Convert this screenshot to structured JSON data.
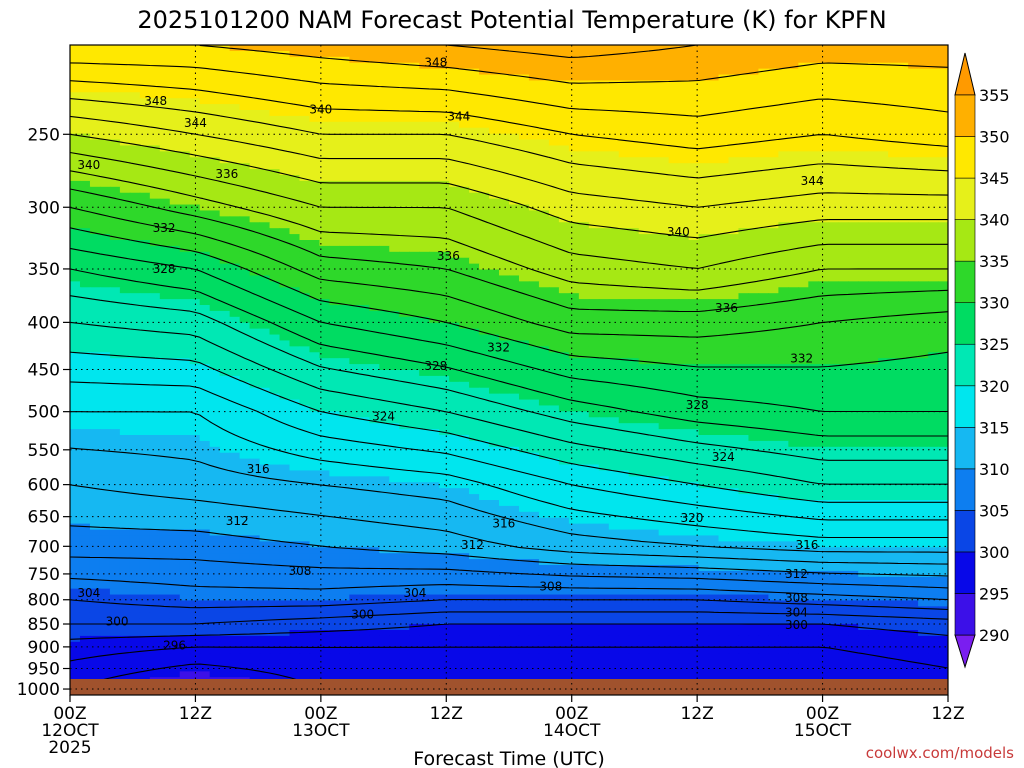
{
  "chart_data": {
    "type": "heatmap",
    "title": "2025101200 NAM Forecast Potential Temperature (K) for KPFN",
    "xlabel": "Forecast Time (UTC)",
    "ylabel": "",
    "credit": "coolwx.com/models",
    "y_axis": {
      "unit": "hPa",
      "range": [
        1015,
        200
      ],
      "scale": "log-pressure",
      "ticks": [
        "250",
        "300",
        "350",
        "400",
        "450",
        "500",
        "550",
        "600",
        "650",
        "700",
        "750",
        "800",
        "850",
        "900",
        "950",
        "1000"
      ],
      "tick_values": [
        250,
        300,
        350,
        400,
        450,
        500,
        550,
        600,
        650,
        700,
        750,
        800,
        850,
        900,
        950,
        1000
      ]
    },
    "x_axis": {
      "unit": "hours",
      "range": [
        0,
        84
      ],
      "ticks": [
        {
          "h": 0,
          "l1": "00Z",
          "l2": "12OCT",
          "l3": "2025"
        },
        {
          "h": 12,
          "l1": "12Z",
          "l2": "",
          "l3": ""
        },
        {
          "h": 24,
          "l1": "00Z",
          "l2": "13OCT",
          "l3": ""
        },
        {
          "h": 36,
          "l1": "12Z",
          "l2": "",
          "l3": ""
        },
        {
          "h": 48,
          "l1": "00Z",
          "l2": "14OCT",
          "l3": ""
        },
        {
          "h": 60,
          "l1": "12Z",
          "l2": "",
          "l3": ""
        },
        {
          "h": 72,
          "l1": "00Z",
          "l2": "15OCT",
          "l3": ""
        },
        {
          "h": 84,
          "l1": "12Z",
          "l2": "",
          "l3": ""
        }
      ]
    },
    "colorbar": {
      "levels": [
        "290",
        "295",
        "300",
        "305",
        "310",
        "315",
        "320",
        "325",
        "330",
        "335",
        "340",
        "345",
        "350",
        "355"
      ],
      "colors": [
        "#7a1ef0",
        "#3c10e8",
        "#0808e8",
        "#0a46e6",
        "#0d7ef0",
        "#16b8f2",
        "#00e6ee",
        "#00e8b4",
        "#00dc62",
        "#2ed82a",
        "#a6e814",
        "#e6f01a",
        "#ffe800",
        "#ffb000",
        "#ff9a00"
      ]
    },
    "contour_interval_K": 2,
    "theta_profiles_K": [
      {
        "hour": 0,
        "p_hPa": [
          1000,
          900,
          850,
          800,
          700,
          600,
          500,
          400,
          350,
          300,
          250,
          200
        ],
        "theta": [
          296,
          299,
          302,
          304,
          309,
          312,
          316,
          322,
          326,
          332,
          340,
          350
        ]
      },
      {
        "hour": 12,
        "p_hPa": [
          1000,
          900,
          850,
          800,
          700,
          600,
          500,
          400,
          350,
          300,
          250,
          200
        ],
        "theta": [
          293,
          298,
          302,
          305,
          309,
          313,
          316,
          323,
          328,
          335,
          342,
          350
        ]
      },
      {
        "hour": 24,
        "p_hPa": [
          1000,
          900,
          850,
          800,
          700,
          600,
          500,
          400,
          350,
          300,
          250,
          200
        ],
        "theta": [
          296,
          298,
          301,
          305,
          310,
          314,
          320,
          328,
          333,
          338,
          344,
          351
        ]
      },
      {
        "hour": 36,
        "p_hPa": [
          1000,
          900,
          850,
          800,
          700,
          600,
          500,
          400,
          350,
          300,
          250,
          200
        ],
        "theta": [
          296,
          298,
          300,
          304,
          311,
          315,
          322,
          330,
          334,
          338,
          344,
          352
        ]
      },
      {
        "hour": 48,
        "p_hPa": [
          1000,
          900,
          850,
          800,
          700,
          600,
          500,
          400,
          350,
          300,
          250,
          200
        ],
        "theta": [
          296,
          298,
          300,
          304,
          313,
          318,
          325,
          333,
          337,
          341,
          346,
          353
        ]
      },
      {
        "hour": 60,
        "p_hPa": [
          1000,
          900,
          850,
          800,
          700,
          600,
          500,
          400,
          350,
          300,
          250,
          200
        ],
        "theta": [
          296,
          298,
          300,
          304,
          314,
          320,
          327,
          333,
          338,
          342,
          347,
          352
        ]
      },
      {
        "hour": 72,
        "p_hPa": [
          1000,
          900,
          850,
          800,
          700,
          600,
          500,
          400,
          350,
          300,
          250,
          200
        ],
        "theta": [
          296,
          298,
          300,
          305,
          315,
          322,
          328,
          332,
          336,
          341,
          346,
          351
        ]
      },
      {
        "hour": 84,
        "p_hPa": [
          1000,
          900,
          850,
          800,
          700,
          600,
          500,
          400,
          350,
          300,
          250,
          200
        ],
        "theta": [
          297,
          299,
          301,
          306,
          315,
          322,
          328,
          331,
          336,
          341,
          347,
          351
        ]
      }
    ],
    "contour_labels": [
      {
        "text": "348",
        "hour": 35.0,
        "p": 209
      },
      {
        "text": "348",
        "hour": 8.2,
        "p": 230
      },
      {
        "text": "344",
        "hour": 12.0,
        "p": 243
      },
      {
        "text": "340",
        "hour": 24.0,
        "p": 235
      },
      {
        "text": "344",
        "hour": 37.2,
        "p": 239
      },
      {
        "text": "340",
        "hour": 1.8,
        "p": 270
      },
      {
        "text": "336",
        "hour": 15.0,
        "p": 276
      },
      {
        "text": "344",
        "hour": 71.0,
        "p": 281
      },
      {
        "text": "332",
        "hour": 9.0,
        "p": 316
      },
      {
        "text": "340",
        "hour": 58.2,
        "p": 319
      },
      {
        "text": "336",
        "hour": 36.2,
        "p": 339
      },
      {
        "text": "328",
        "hour": 9.0,
        "p": 350
      },
      {
        "text": "336",
        "hour": 62.8,
        "p": 386
      },
      {
        "text": "332",
        "hour": 41.0,
        "p": 426
      },
      {
        "text": "328",
        "hour": 35.0,
        "p": 446
      },
      {
        "text": "332",
        "hour": 70.0,
        "p": 438
      },
      {
        "text": "328",
        "hour": 60.0,
        "p": 492
      },
      {
        "text": "324",
        "hour": 30.0,
        "p": 506
      },
      {
        "text": "324",
        "hour": 62.5,
        "p": 560
      },
      {
        "text": "316",
        "hour": 18.0,
        "p": 577
      },
      {
        "text": "312",
        "hour": 16.0,
        "p": 657
      },
      {
        "text": "320",
        "hour": 59.5,
        "p": 652
      },
      {
        "text": "316",
        "hour": 41.5,
        "p": 661
      },
      {
        "text": "312",
        "hour": 38.5,
        "p": 698
      },
      {
        "text": "316",
        "hour": 70.5,
        "p": 698
      },
      {
        "text": "308",
        "hour": 22.0,
        "p": 745
      },
      {
        "text": "312",
        "hour": 69.5,
        "p": 750
      },
      {
        "text": "308",
        "hour": 46.0,
        "p": 774
      },
      {
        "text": "304",
        "hour": 1.8,
        "p": 787
      },
      {
        "text": "304",
        "hour": 33.0,
        "p": 787
      },
      {
        "text": "308",
        "hour": 69.5,
        "p": 797
      },
      {
        "text": "300",
        "hour": 28.0,
        "p": 830
      },
      {
        "text": "304",
        "hour": 69.5,
        "p": 826
      },
      {
        "text": "300",
        "hour": 4.5,
        "p": 845
      },
      {
        "text": "300",
        "hour": 69.5,
        "p": 852
      },
      {
        "text": "296",
        "hour": 10.0,
        "p": 897
      }
    ]
  }
}
